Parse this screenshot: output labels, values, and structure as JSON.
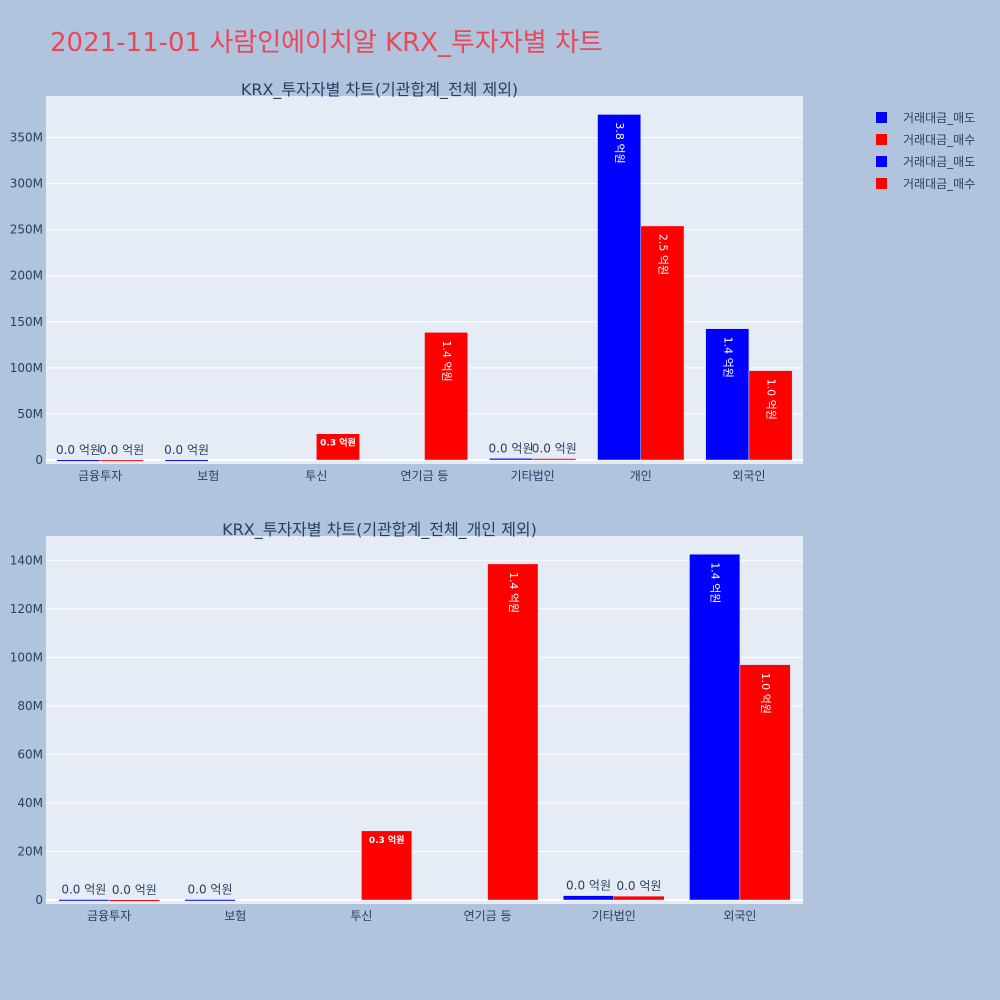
{
  "title": "2021-11-01 사람인에이치알 KRX_투자자별 차트",
  "legend": [
    {
      "label": "거래대금_매도",
      "color": "#0000ff"
    },
    {
      "label": "거래대금_매수",
      "color": "#ff0000"
    },
    {
      "label": "거래대금_매도",
      "color": "#0000ff"
    },
    {
      "label": "거래대금_매수",
      "color": "#ff0000"
    }
  ],
  "chart_data": [
    {
      "type": "bar",
      "title": "KRX_투자자별 차트(기관합계_전체 제외)",
      "categories": [
        "금융투자",
        "보험",
        "투신",
        "연기금 등",
        "기타법인",
        "개인",
        "외국인"
      ],
      "ylim": [
        0,
        395000000
      ],
      "yticks": [
        0,
        50000000,
        100000000,
        150000000,
        200000000,
        250000000,
        300000000,
        350000000
      ],
      "ytick_labels": [
        "0",
        "50M",
        "100M",
        "150M",
        "200M",
        "250M",
        "300M",
        "350M"
      ],
      "series": [
        {
          "name": "거래대금_매도",
          "color": "#0000ff",
          "values": [
            200000,
            200000,
            0,
            0,
            1800000,
            375000000,
            142500000
          ],
          "labels": [
            "0.0 억원",
            "0.0 억원",
            "",
            "",
            "0.0 억원",
            "3.8 억원",
            "1.4 억원"
          ]
        },
        {
          "name": "거래대금_매수",
          "color": "#ff0000",
          "values": [
            100000,
            0,
            28500000,
            138500000,
            1600000,
            254000000,
            97000000
          ],
          "labels": [
            "0.0 억원",
            "",
            "0.3 억원",
            "1.4 억원",
            "0.0 억원",
            "2.5 억원",
            "1.0 억원"
          ]
        }
      ]
    },
    {
      "type": "bar",
      "title": "KRX_투자자별 차트(기관합계_전체_개인 제외)",
      "categories": [
        "금융투자",
        "보험",
        "투신",
        "연기금 등",
        "기타법인",
        "외국인"
      ],
      "ylim": [
        0,
        150000000
      ],
      "yticks": [
        0,
        20000000,
        40000000,
        60000000,
        80000000,
        100000000,
        120000000,
        140000000
      ],
      "ytick_labels": [
        "0",
        "20M",
        "40M",
        "60M",
        "80M",
        "100M",
        "120M",
        "140M"
      ],
      "series": [
        {
          "name": "거래대금_매도",
          "color": "#0000ff",
          "values": [
            200000,
            200000,
            0,
            0,
            1800000,
            142500000
          ],
          "labels": [
            "0.0 억원",
            "0.0 억원",
            "",
            "",
            "0.0 억원",
            "1.4 억원"
          ]
        },
        {
          "name": "거래대금_매수",
          "color": "#ff0000",
          "values": [
            100000,
            0,
            28500000,
            138500000,
            1600000,
            97000000
          ],
          "labels": [
            "0.0 억원",
            "",
            "0.3 억원",
            "1.4 억원",
            "0.0 억원",
            "1.0 억원"
          ]
        }
      ]
    }
  ]
}
